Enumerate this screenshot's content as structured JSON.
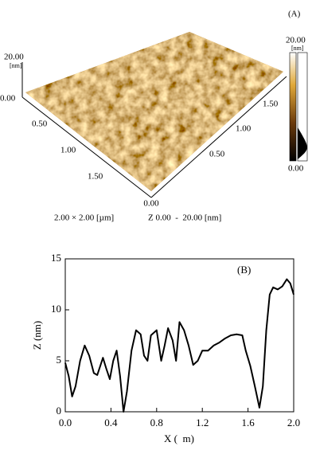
{
  "afm_image": {
    "label": "(A)",
    "z_axis": {
      "max": "20.00",
      "unit": "[nm]",
      "min": "0.00"
    },
    "left_axis_ticks": [
      "0.50",
      "1.00",
      "1.50"
    ],
    "origin": "0.00",
    "right_axis_ticks": [
      "1.50",
      "1.00",
      "0.50"
    ],
    "colorbar": {
      "max": "20.00",
      "unit": "[nm]",
      "min": "0.00"
    },
    "caption": {
      "scan_size": "2.00 × 2.00 [µm]",
      "z_range": "Z 0.00  -  20.00 [nm]"
    }
  },
  "chart_data": {
    "type": "line",
    "title": "(B)",
    "x_label": "X (  m)",
    "y_label": "Z (nm)",
    "color": "#000000",
    "x": [
      0,
      0.03,
      0.06,
      0.09,
      0.13,
      0.17,
      0.21,
      0.25,
      0.28,
      0.33,
      0.36,
      0.39,
      0.42,
      0.45,
      0.48,
      0.51,
      0.54,
      0.58,
      0.62,
      0.66,
      0.69,
      0.72,
      0.75,
      0.8,
      0.84,
      0.87,
      0.9,
      0.94,
      0.97,
      1.0,
      1.04,
      1.08,
      1.12,
      1.16,
      1.2,
      1.25,
      1.3,
      1.35,
      1.4,
      1.45,
      1.5,
      1.55,
      1.58,
      1.62,
      1.66,
      1.7,
      1.73,
      1.76,
      1.79,
      1.82,
      1.86,
      1.9,
      1.94,
      1.97,
      2.0
    ],
    "values": [
      4.8,
      3.5,
      1.5,
      2.5,
      5.0,
      6.5,
      5.5,
      3.8,
      3.6,
      5.3,
      4.2,
      3.2,
      5.0,
      6.0,
      3.5,
      0,
      2.0,
      6.0,
      8.0,
      7.6,
      5.5,
      5.0,
      7.5,
      8.0,
      5.0,
      6.5,
      8.2,
      7.0,
      5.0,
      8.8,
      8.0,
      6.5,
      4.6,
      5.0,
      6.0,
      6.0,
      6.5,
      6.8,
      7.2,
      7.5,
      7.6,
      7.5,
      6.0,
      4.5,
      2.5,
      0.4,
      2.5,
      8.0,
      11.5,
      12.2,
      12.0,
      12.3,
      13.0,
      12.6,
      11.5
    ],
    "xlim": [
      0,
      2
    ],
    "ylim": [
      0,
      15
    ],
    "xticks": [
      {
        "value": 0,
        "label": "0.0"
      },
      {
        "value": 0.4,
        "label": "0.4"
      },
      {
        "value": 0.8,
        "label": "0.8"
      },
      {
        "value": 1.2,
        "label": "1.2"
      },
      {
        "value": 1.6,
        "label": "1.6"
      },
      {
        "value": 2,
        "label": "2.0"
      }
    ],
    "yticks": [
      0,
      5,
      10,
      15
    ]
  }
}
